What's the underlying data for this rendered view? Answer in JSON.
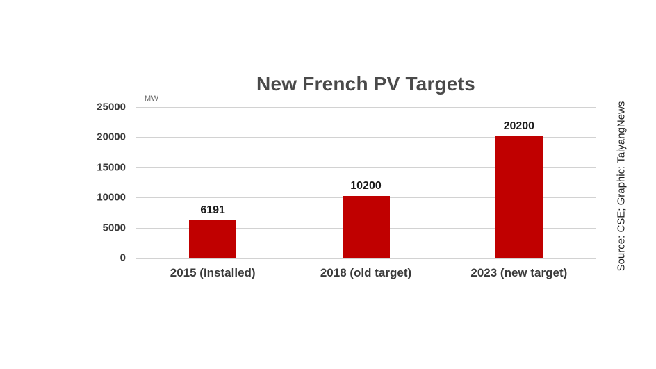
{
  "chart_data": {
    "type": "bar",
    "title": "New French PV Targets",
    "unit_label": "MW",
    "categories": [
      "2015 (Installed)",
      "2018 (old target)",
      "2023 (new target)"
    ],
    "values": [
      6191,
      10200,
      20200
    ],
    "value_labels": [
      "6191",
      "10200",
      "20200"
    ],
    "y_ticks": [
      25000,
      20000,
      15000,
      10000,
      5000,
      0
    ],
    "ylim": [
      0,
      25000
    ],
    "grid": true,
    "legend": "none",
    "bar_color": "#c00000",
    "source_note": "Source: CSE; Graphic: TaiyangNews"
  }
}
